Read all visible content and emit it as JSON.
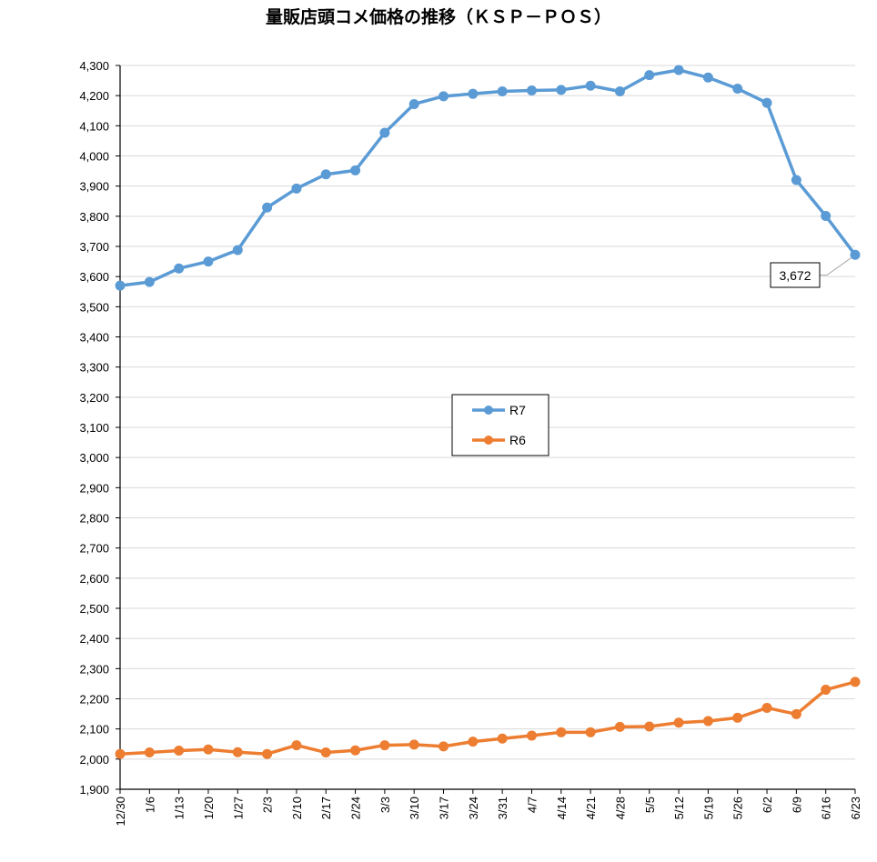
{
  "chart_data": {
    "type": "line",
    "title": "量販店頭コメ価格の推移（ＫＳＰ－ＰＯＳ）",
    "xlabel": "",
    "ylabel": "",
    "ylim": [
      1900,
      4300
    ],
    "ytick_step": 100,
    "grid": true,
    "legend_position": "center",
    "categories": [
      "12/30",
      "1/6",
      "1/13",
      "1/20",
      "1/27",
      "2/3",
      "2/10",
      "2/17",
      "2/24",
      "3/3",
      "3/10",
      "3/17",
      "3/24",
      "3/31",
      "4/7",
      "4/14",
      "4/21",
      "4/28",
      "5/5",
      "5/12",
      "5/19",
      "5/26",
      "6/2",
      "6/9",
      "6/16",
      "6/23"
    ],
    "series": [
      {
        "name": "R7",
        "color": "#5b9bd5",
        "values": [
          3570,
          3582,
          3627,
          3650,
          3688,
          3829,
          3892,
          3939,
          3952,
          4077,
          4172,
          4198,
          4206,
          4214,
          4217,
          4219,
          4233,
          4214,
          4268,
          4285,
          4260,
          4223,
          4176,
          3920,
          3801,
          3672
        ]
      },
      {
        "name": "R6",
        "color": "#ed7d31",
        "values": [
          2017,
          2022,
          2028,
          2032,
          2023,
          2017,
          2046,
          2022,
          2029,
          2046,
          2048,
          2042,
          2058,
          2068,
          2078,
          2089,
          2089,
          2107,
          2108,
          2121,
          2126,
          2137,
          2170,
          2149,
          2230,
          2256
        ]
      }
    ],
    "annotations": [
      {
        "series": "R7",
        "index": 25,
        "text": "3,672"
      }
    ]
  }
}
